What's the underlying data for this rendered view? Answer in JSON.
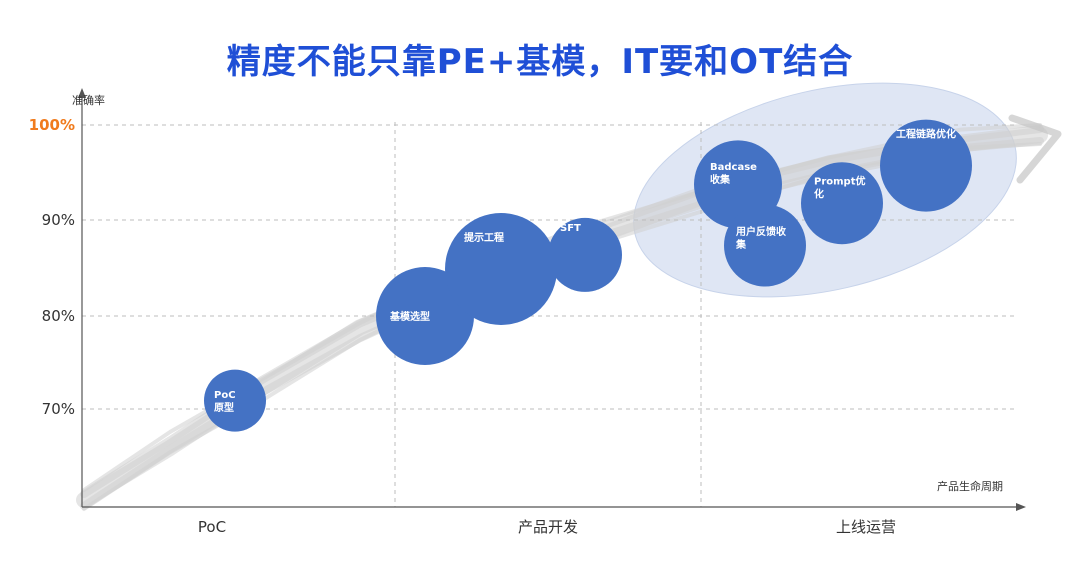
{
  "title": "精度不能只靠PE+基模，IT要和OT结合",
  "colors": {
    "title": "#1f4fd6",
    "bubble": "#4472c4",
    "ellipse": "#dfe6f4",
    "highlight_tick": "#f07b1d",
    "trend_stroke": "#c9c9c9"
  },
  "chart_data": {
    "type": "scatter",
    "ylabel": "准确率",
    "xlabel": "产品生命周期",
    "y_ticks": [
      "70%",
      "80%",
      "90%",
      "100%"
    ],
    "highlight_tick": "100%",
    "phases": [
      "PoC",
      "产品开发",
      "上线运营"
    ],
    "grid": "dashed",
    "bubbles": [
      {
        "lines": [
          "PoC",
          "原型"
        ],
        "phase": "PoC",
        "accuracy": 71,
        "size": "small"
      },
      {
        "lines": [
          "基模选型"
        ],
        "phase": "产品开发",
        "accuracy": 80,
        "size": "large"
      },
      {
        "lines": [
          "提示工程"
        ],
        "phase": "产品开发",
        "accuracy": 85,
        "size": "large"
      },
      {
        "lines": [
          "SFT"
        ],
        "phase": "产品开发",
        "accuracy": 86.5,
        "size": "medium"
      },
      {
        "lines": [
          "Badcase",
          "收集"
        ],
        "phase": "上线运营",
        "accuracy": 94,
        "size": "medium"
      },
      {
        "lines": [
          "用户反馈收",
          "集"
        ],
        "phase": "上线运营",
        "accuracy": 87.5,
        "size": "medium"
      },
      {
        "lines": [
          "Prompt优",
          "化"
        ],
        "phase": "上线运营",
        "accuracy": 92,
        "size": "medium"
      },
      {
        "lines": [
          "工程链路优化"
        ],
        "phase": "上线运营",
        "accuracy": 96,
        "size": "medium"
      }
    ]
  }
}
